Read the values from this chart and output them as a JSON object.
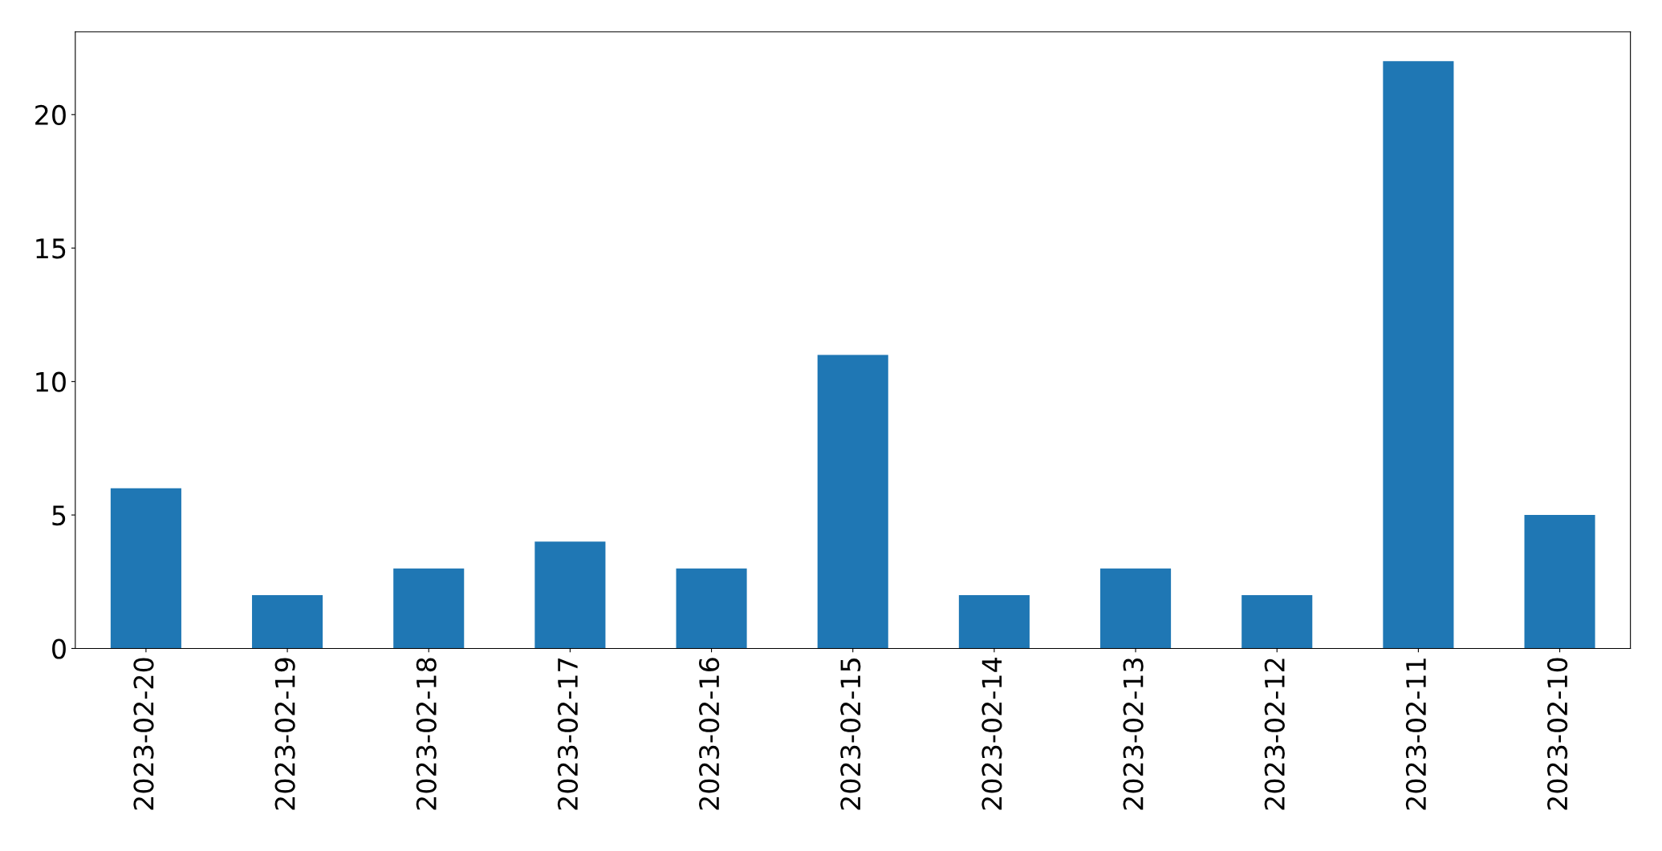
{
  "chart_data": {
    "type": "bar",
    "categories": [
      "2023-02-20",
      "2023-02-19",
      "2023-02-18",
      "2023-02-17",
      "2023-02-16",
      "2023-02-15",
      "2023-02-14",
      "2023-02-13",
      "2023-02-12",
      "2023-02-11",
      "2023-02-10"
    ],
    "values": [
      6,
      2,
      3,
      4,
      3,
      11,
      2,
      3,
      2,
      22,
      5
    ],
    "color": "#1f77b4",
    "ylim": [
      0,
      23.1
    ],
    "yticks": [
      0,
      5,
      10,
      15,
      20
    ],
    "grid": false
  }
}
